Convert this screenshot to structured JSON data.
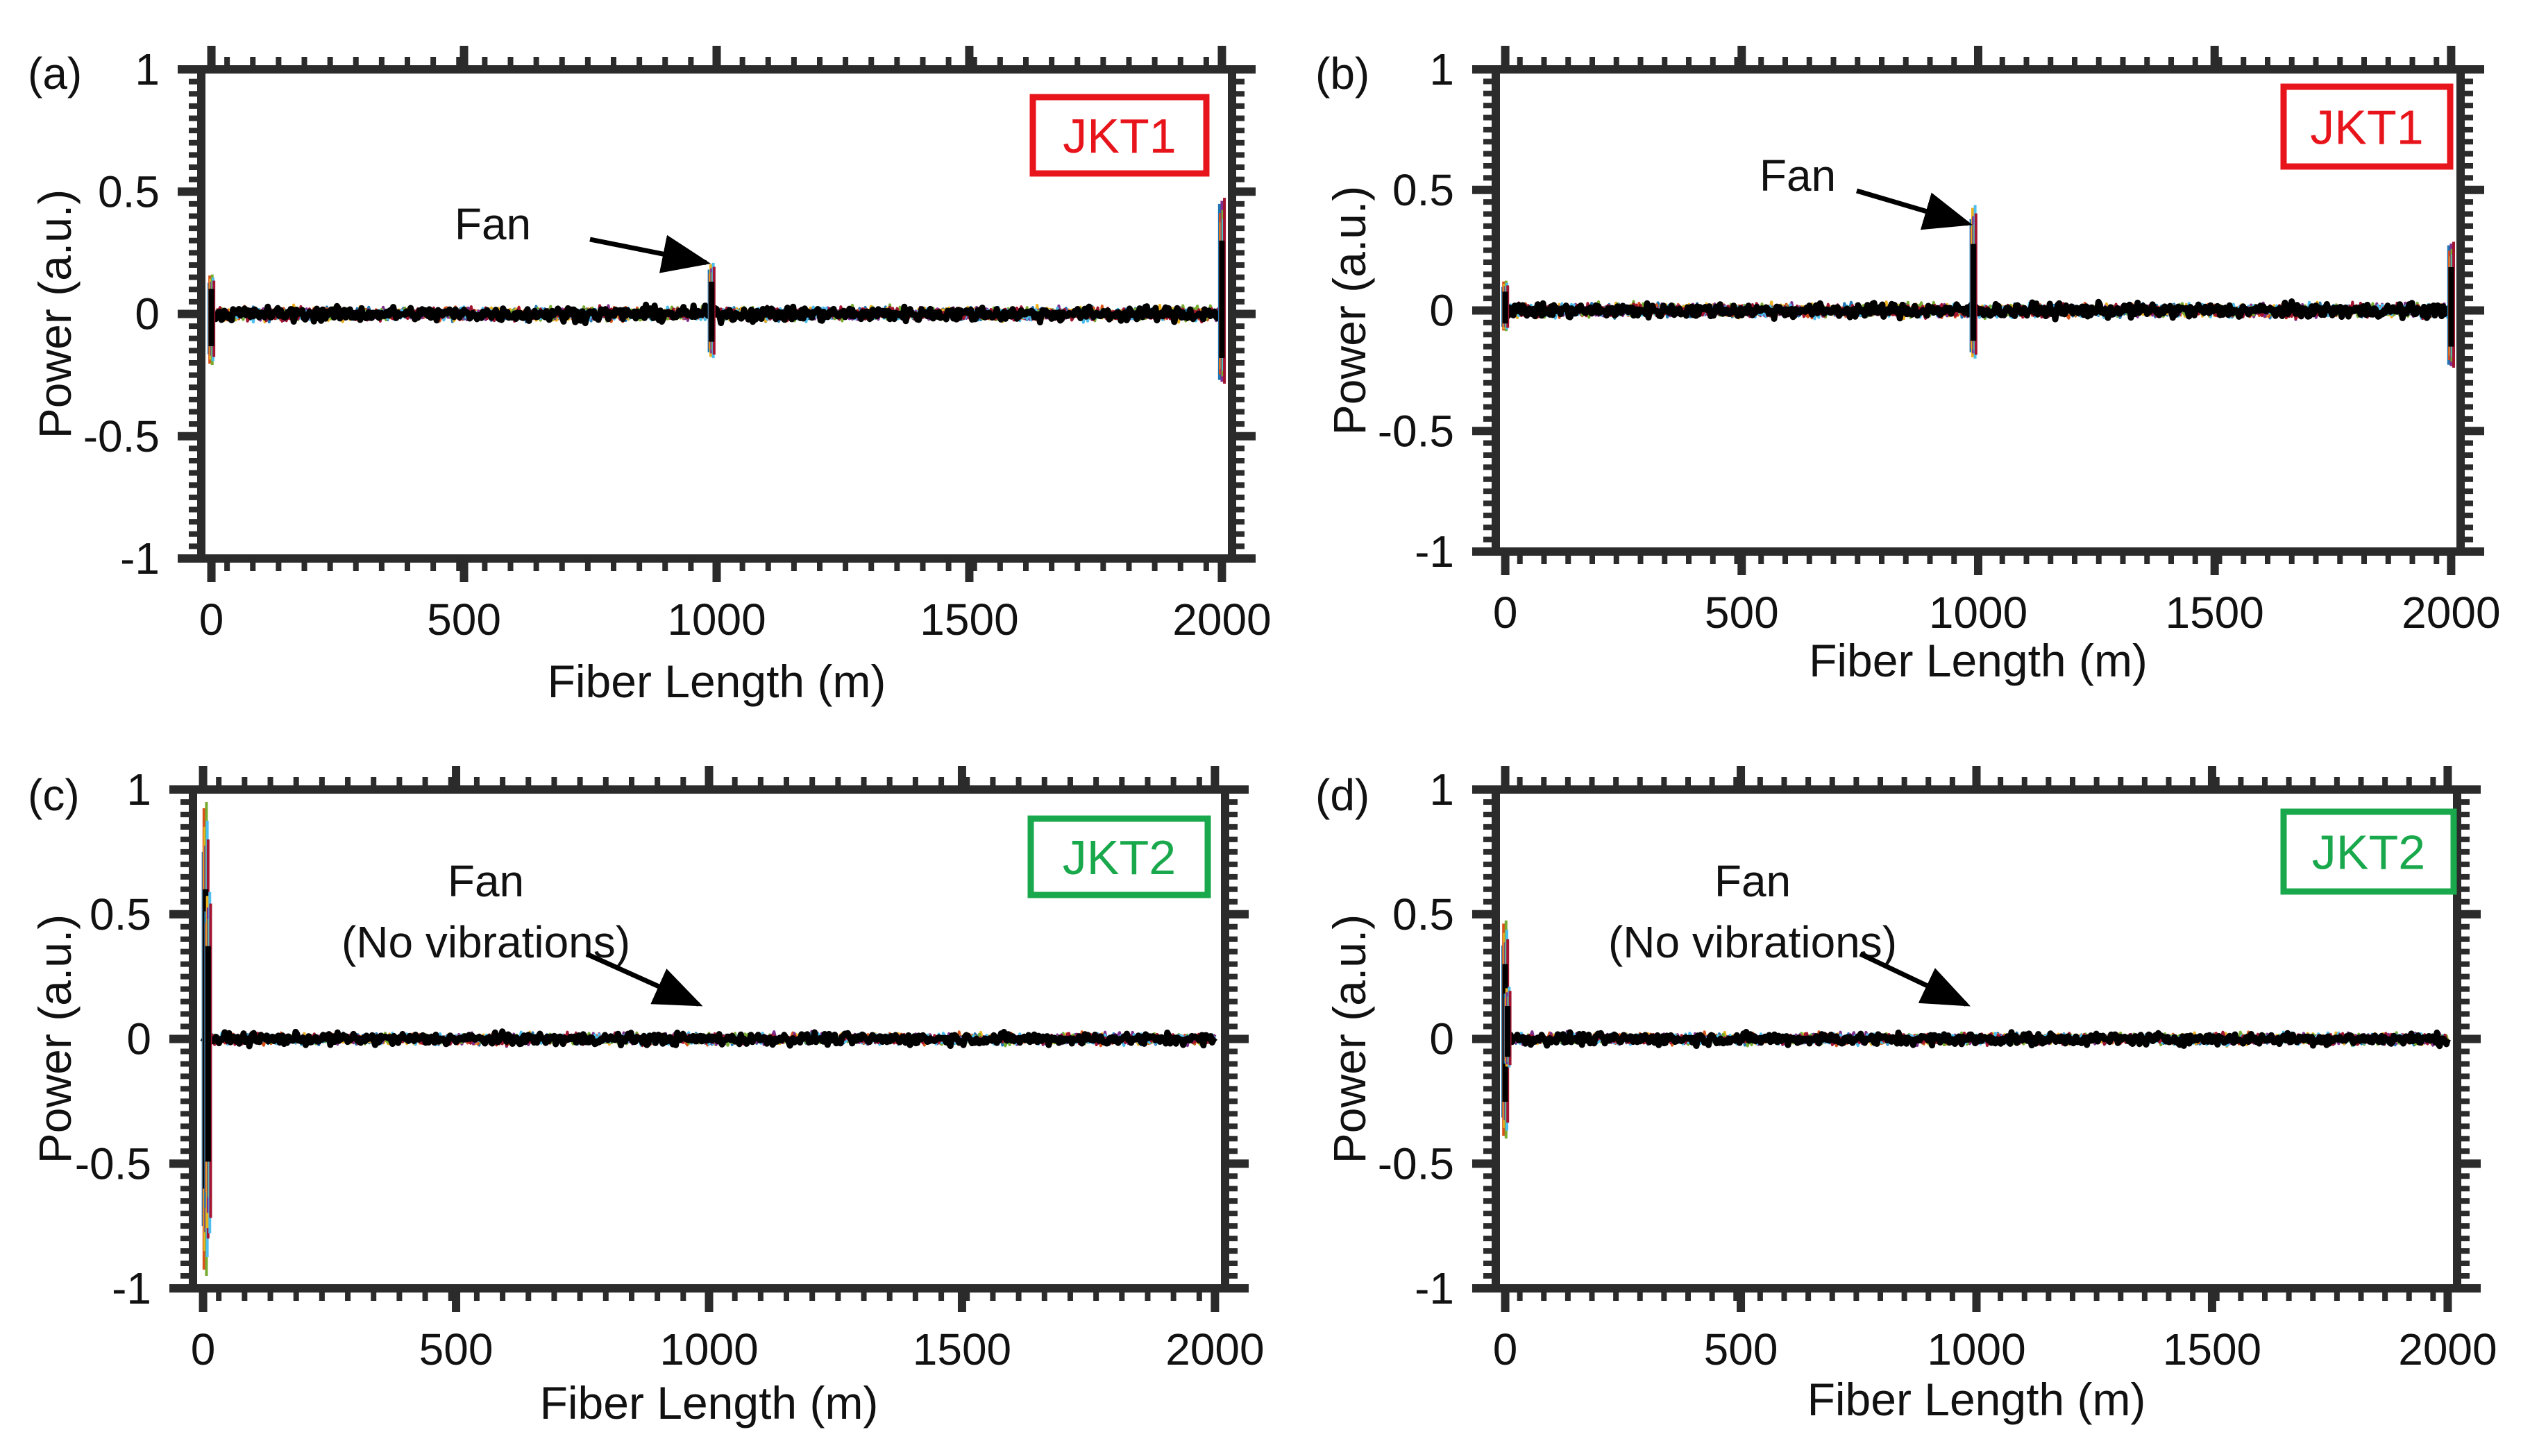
{
  "figure": {
    "series_colors": [
      "#1f77b4",
      "#d95319",
      "#edb120",
      "#7e2f8e",
      "#77ac30",
      "#4dbeee",
      "#a2142f"
    ],
    "trace_color": "#000000"
  },
  "chart_data": [
    {
      "type": "line",
      "panel": "(a)",
      "tag": {
        "text": "JKT1",
        "color": "#e8141b"
      },
      "xlabel": "Fiber Length (m)",
      "ylabel": "Power (a.u.)",
      "xlim": [
        -20,
        2020
      ],
      "ylim": [
        -1,
        1
      ],
      "xticks": [
        0,
        500,
        1000,
        1500,
        2000
      ],
      "xtick_labels": [
        "0",
        "500",
        "1000",
        "1500",
        "2000"
      ],
      "yticks": [
        -1,
        -0.5,
        0,
        0.5,
        1
      ],
      "ytick_labels": [
        "-1",
        "-0.5",
        "0",
        "0.5",
        "1"
      ],
      "noise_amplitude": 0.05,
      "features": [
        {
          "x": 0,
          "max": 0.17,
          "min": -0.22
        },
        {
          "x": 990,
          "max": 0.22,
          "min": -0.19
        },
        {
          "x": 2000,
          "max": 0.5,
          "min": -0.3
        }
      ],
      "annotation": {
        "lines": [
          "Fan"
        ],
        "x": 990,
        "y": 0.17
      }
    },
    {
      "type": "line",
      "panel": "(b)",
      "tag": {
        "text": "JKT1",
        "color": "#e8141b"
      },
      "xlabel": "Fiber Length (m)",
      "ylabel": "Power (a.u.)",
      "xlim": [
        -20,
        2020
      ],
      "ylim": [
        -1,
        1
      ],
      "xticks": [
        0,
        500,
        1000,
        1500,
        2000
      ],
      "xtick_labels": [
        "0",
        "500",
        "1000",
        "1500",
        "2000"
      ],
      "yticks": [
        -1,
        -0.5,
        0,
        0.5,
        1
      ],
      "ytick_labels": [
        "-1",
        "-0.5",
        "0",
        "0.5",
        "1"
      ],
      "noise_amplitude": 0.05,
      "features": [
        {
          "x": 0,
          "max": 0.13,
          "min": -0.09
        },
        {
          "x": 990,
          "max": 0.46,
          "min": -0.21
        },
        {
          "x": 2000,
          "max": 0.3,
          "min": -0.25
        }
      ],
      "annotation": {
        "lines": [
          "Fan"
        ],
        "x": 990,
        "y": 0.32
      }
    },
    {
      "type": "line",
      "panel": "(c)",
      "tag": {
        "text": "JKT2",
        "color": "#19a84b"
      },
      "xlabel": "Fiber Length (m)",
      "ylabel": "Power (a.u.)",
      "xlim": [
        -20,
        2020
      ],
      "ylim": [
        -1,
        1
      ],
      "xticks": [
        0,
        500,
        1000,
        1500,
        2000
      ],
      "xtick_labels": [
        "0",
        "500",
        "1000",
        "1500",
        "2000"
      ],
      "yticks": [
        -1,
        -0.5,
        0,
        0.5,
        1
      ],
      "ytick_labels": [
        "-1",
        "-0.5",
        "0",
        "0.5",
        "1"
      ],
      "noise_amplitude": 0.04,
      "features": [
        {
          "x": 5,
          "max": 1.0,
          "min": -1.0
        },
        {
          "x": 10,
          "max": 0.62,
          "min": -0.82
        }
      ],
      "annotation": {
        "lines": [
          "Fan",
          "(No vibrations)"
        ],
        "x": 990,
        "y": 0.1
      }
    },
    {
      "type": "line",
      "panel": "(d)",
      "tag": {
        "text": "JKT2",
        "color": "#19a84b"
      },
      "xlabel": "Fiber Length (m)",
      "ylabel": "Power (a.u.)",
      "xlim": [
        -20,
        2020
      ],
      "ylim": [
        -1,
        1
      ],
      "xticks": [
        0,
        500,
        1000,
        1500,
        2000
      ],
      "xtick_labels": [
        "0",
        "500",
        "1000",
        "1500",
        "2000"
      ],
      "yticks": [
        -1,
        -0.5,
        0,
        0.5,
        1
      ],
      "ytick_labels": [
        "-1",
        "-0.5",
        "0",
        "0.5",
        "1"
      ],
      "noise_amplitude": 0.04,
      "features": [
        {
          "x": 0,
          "max": 0.5,
          "min": -0.42
        },
        {
          "x": 5,
          "max": 0.22,
          "min": -0.12
        }
      ],
      "annotation": {
        "lines": [
          "Fan",
          "(No vibrations)"
        ],
        "x": 990,
        "y": 0.1
      }
    }
  ]
}
